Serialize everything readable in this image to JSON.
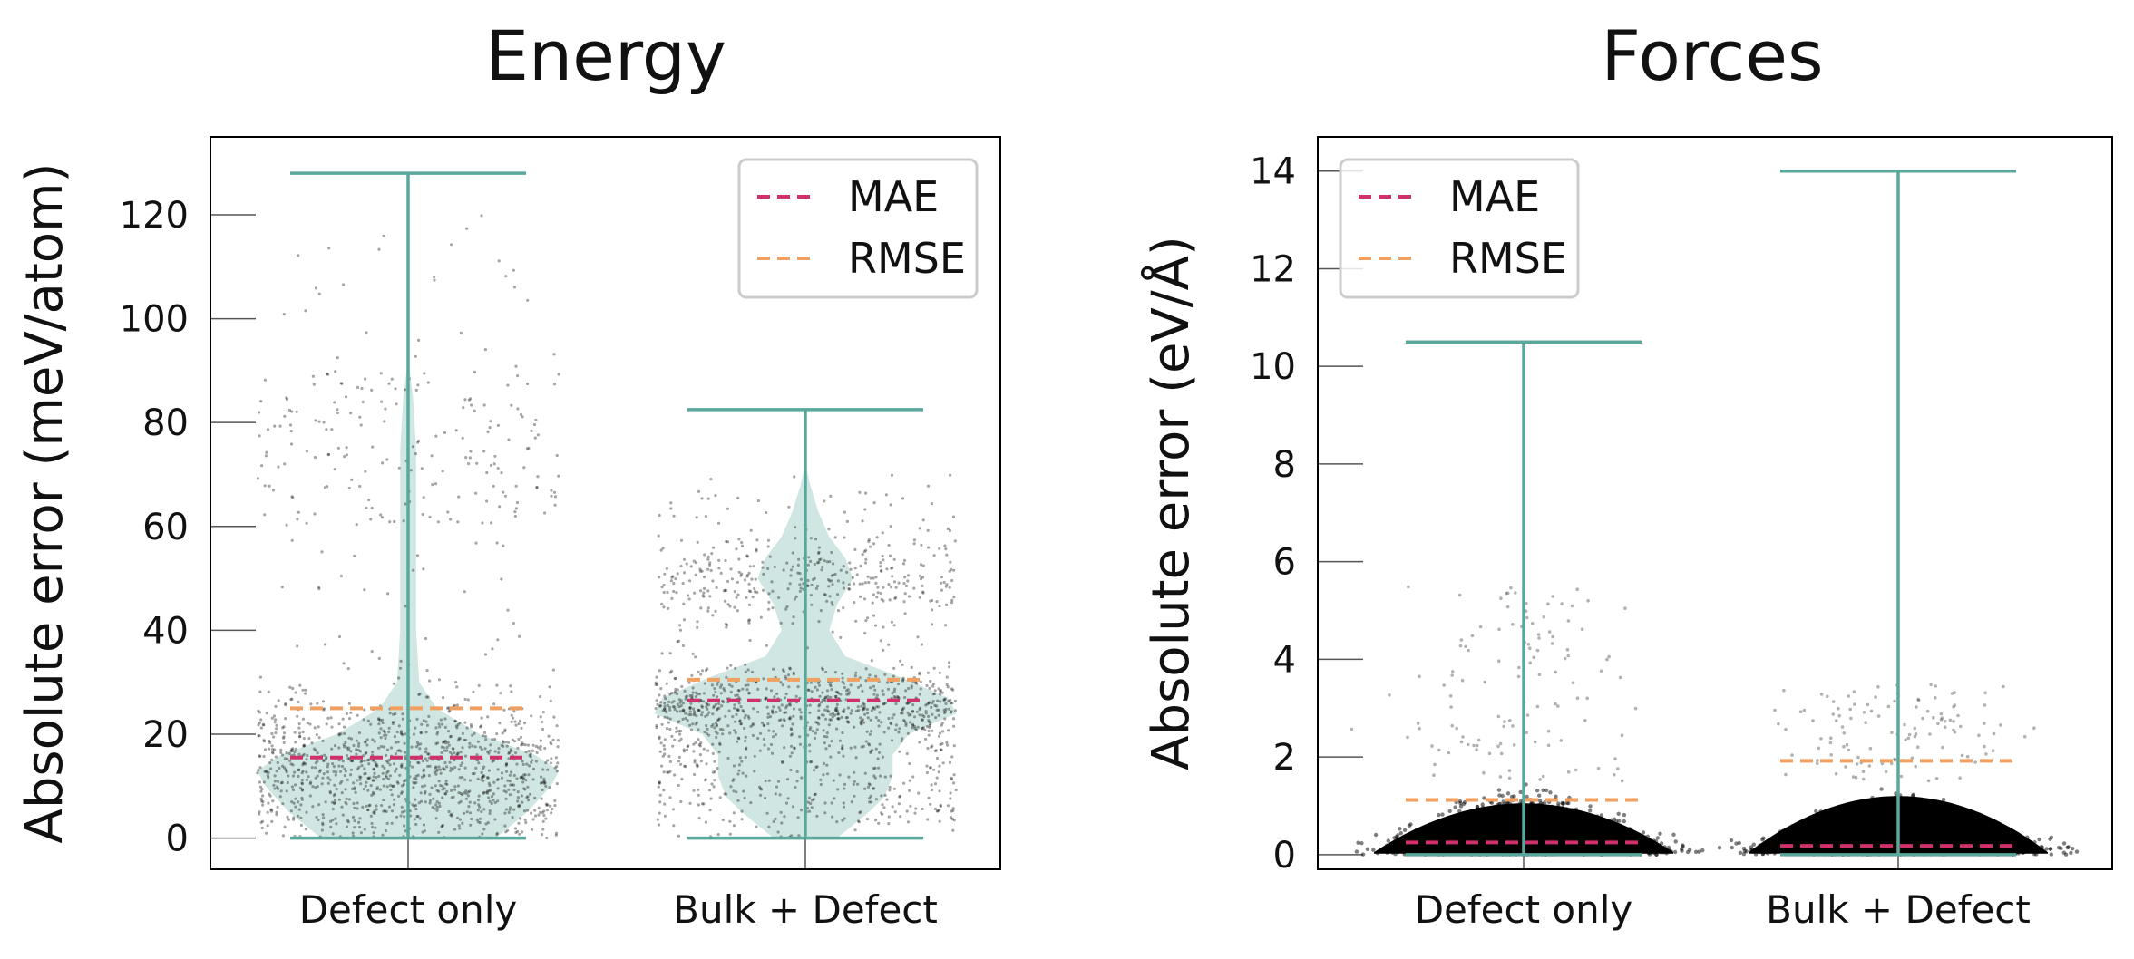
{
  "colors": {
    "violin_fill": "#cfe6e2",
    "whisker": "#5aa89c",
    "mae": "#d0306c",
    "rmse": "#f0a060",
    "points": "#000000"
  },
  "chart_data": [
    {
      "type": "violin",
      "title": "Energy",
      "ylabel": "Absolute error (meV/atom)",
      "ylim": [
        -6,
        135
      ],
      "yticks": [
        0,
        20,
        40,
        60,
        80,
        100,
        120
      ],
      "categories": [
        "Defect only",
        "Bulk + Defect"
      ],
      "min": [
        0,
        0
      ],
      "max": [
        128,
        82.5
      ],
      "mae": [
        15.5,
        26.5
      ],
      "rmse": [
        25,
        30.5
      ],
      "legend": {
        "position": "top-right",
        "entries": [
          "MAE",
          "RMSE"
        ]
      },
      "density_profiles": [
        [
          [
            0,
            0.55
          ],
          [
            5,
            0.75
          ],
          [
            10,
            0.9
          ],
          [
            13,
            0.95
          ],
          [
            16,
            0.8
          ],
          [
            20,
            0.45
          ],
          [
            25,
            0.18
          ],
          [
            30,
            0.07
          ],
          [
            40,
            0.05
          ],
          [
            55,
            0.05
          ],
          [
            65,
            0.05
          ],
          [
            75,
            0.05
          ],
          [
            80,
            0.04
          ],
          [
            85,
            0.03
          ],
          [
            90,
            0.01
          ],
          [
            95,
            0
          ]
        ],
        [
          [
            0,
            0.2
          ],
          [
            5,
            0.4
          ],
          [
            8,
            0.5
          ],
          [
            12,
            0.55
          ],
          [
            16,
            0.55
          ],
          [
            20,
            0.65
          ],
          [
            24,
            0.95
          ],
          [
            27,
            0.9
          ],
          [
            31,
            0.6
          ],
          [
            35,
            0.25
          ],
          [
            40,
            0.15
          ],
          [
            45,
            0.2
          ],
          [
            50,
            0.3
          ],
          [
            54,
            0.25
          ],
          [
            58,
            0.15
          ],
          [
            63,
            0.08
          ],
          [
            68,
            0.03
          ],
          [
            72,
            0
          ]
        ]
      ]
    },
    {
      "type": "violin",
      "title": "Forces",
      "ylabel": "Absolute error (eV/Å)",
      "ylim": [
        -0.3,
        14.7
      ],
      "yticks": [
        0,
        2,
        4,
        6,
        8,
        10,
        12,
        14
      ],
      "categories": [
        "Defect only",
        "Bulk + Defect"
      ],
      "min": [
        0,
        0
      ],
      "max": [
        10.5,
        14
      ],
      "mae": [
        0.25,
        0.18
      ],
      "rmse": [
        1.12,
        1.92
      ],
      "legend": {
        "position": "top-left",
        "entries": [
          "MAE",
          "RMSE"
        ]
      }
    }
  ]
}
